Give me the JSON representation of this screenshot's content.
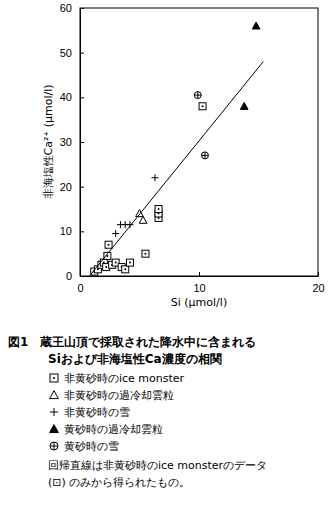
{
  "chart_data": {
    "type": "scatter",
    "title": [
      "図1　蔵王山頂で採取された降水中に含まれる",
      "Siおよび非海塩性Ca濃度の相関"
    ],
    "x_label": "Si (μmol/l)",
    "y_label": "非海塩性Ca²⁺ (μmol/l)",
    "xlim": [
      0,
      20
    ],
    "xticks": [
      0,
      10,
      20
    ],
    "ylim": [
      0,
      60
    ],
    "yticks": [
      0,
      10,
      20,
      30,
      40,
      50,
      60
    ],
    "color": "#000000",
    "series": [
      {
        "name": "非黄砂時のice monster",
        "marker": "square-dot",
        "x": [
          1.2,
          1.5,
          1.8,
          2.0,
          2.2,
          2.3,
          2.4,
          2.7,
          3.0,
          3.5,
          3.8,
          4.2,
          5.5,
          6.6,
          6.6,
          6.6,
          10.3
        ],
        "y": [
          1,
          1.5,
          2.5,
          3,
          2,
          4.5,
          7,
          2.5,
          3,
          2,
          1.5,
          3,
          5,
          13,
          14,
          15,
          38
        ]
      },
      {
        "name": "非黄砂時の過冷却雲粒",
        "marker": "triangle",
        "x": [
          5.0,
          5.3
        ],
        "y": [
          14,
          12.5
        ]
      },
      {
        "name": "非黄砂時の雪",
        "marker": "plus",
        "x": [
          3.0,
          3.4,
          3.8,
          4.2,
          6.3
        ],
        "y": [
          9.5,
          11.5,
          11.5,
          11.5,
          22
        ]
      },
      {
        "name": "黄砂時の過冷却雲粒",
        "marker": "triangle-filled",
        "x": [
          13.8,
          14.8
        ],
        "y": [
          38,
          56
        ]
      },
      {
        "name": "黄砂時の雪",
        "marker": "circle-plus",
        "x": [
          9.9,
          10.5
        ],
        "y": [
          40.5,
          27
        ]
      },
      {
        "type": "line",
        "line_style": "solid",
        "x": [
          0.8,
          15.4
        ],
        "y": [
          0,
          48
        ]
      }
    ],
    "annotations": [
      "回帰直線は非黄砂時のice monsterのデータ",
      "(⊡) のみから得られたもの。"
    ]
  }
}
